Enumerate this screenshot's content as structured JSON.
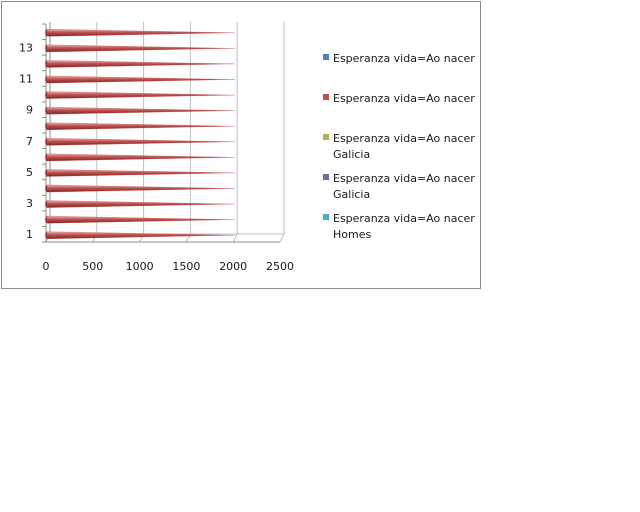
{
  "chart_data": {
    "type": "bar",
    "orientation": "horizontal",
    "style": "3d-cone",
    "categories": [
      "1",
      "2",
      "3",
      "4",
      "5",
      "6",
      "7",
      "8",
      "9",
      "10",
      "11",
      "12",
      "13",
      "14"
    ],
    "y_tick_labels": [
      "1",
      "3",
      "5",
      "7",
      "9",
      "11",
      "13"
    ],
    "x_tick_labels": [
      "0",
      "500",
      "1000",
      "1500",
      "2000",
      "2500"
    ],
    "xlim": [
      0,
      2500
    ],
    "grid": true,
    "legend_position": "right",
    "series": [
      {
        "name": "Esperanza vida=Ao nacer",
        "color": "#4f81bd",
        "values": [
          0,
          0,
          0,
          0,
          0,
          0,
          0,
          0,
          0,
          0,
          0,
          0,
          0,
          0
        ]
      },
      {
        "name": "Esperanza vida=Ao nacer",
        "color": "#c0504d",
        "values": [
          2020,
          2020,
          2020,
          2020,
          2020,
          2020,
          2020,
          2020,
          2020,
          2020,
          2020,
          2020,
          2020,
          2020
        ]
      },
      {
        "name": "Esperanza vida=Ao nacer Galicia",
        "color": "#9bbb59",
        "values": [
          0,
          0,
          0,
          0,
          0,
          0,
          0,
          0,
          0,
          0,
          0,
          0,
          0,
          0
        ]
      },
      {
        "name": "Esperanza vida=Ao nacer Galicia",
        "color": "#8064a2",
        "values": [
          0,
          0,
          0,
          0,
          0,
          0,
          0,
          0,
          0,
          0,
          0,
          0,
          0,
          0
        ]
      },
      {
        "name": "Esperanza vida=Ao nacer Homes",
        "color": "#4bacc6",
        "values": [
          0,
          0,
          0,
          0,
          0,
          0,
          0,
          0,
          0,
          0,
          0,
          0,
          0,
          0
        ]
      }
    ],
    "legend": [
      {
        "lines": [
          "Esperanza vida=Ao nacer"
        ],
        "color": "#4f81bd"
      },
      {
        "lines": [
          "Esperanza vida=Ao nacer"
        ],
        "color": "#c0504d"
      },
      {
        "lines": [
          "Esperanza vida=Ao nacer",
          "Galicia"
        ],
        "color": "#9bbb59"
      },
      {
        "lines": [
          "Esperanza vida=Ao nacer",
          "Galicia"
        ],
        "color": "#8064a2"
      },
      {
        "lines": [
          "Esperanza vida=Ao nacer",
          "Homes"
        ],
        "color": "#4bacc6"
      }
    ]
  }
}
